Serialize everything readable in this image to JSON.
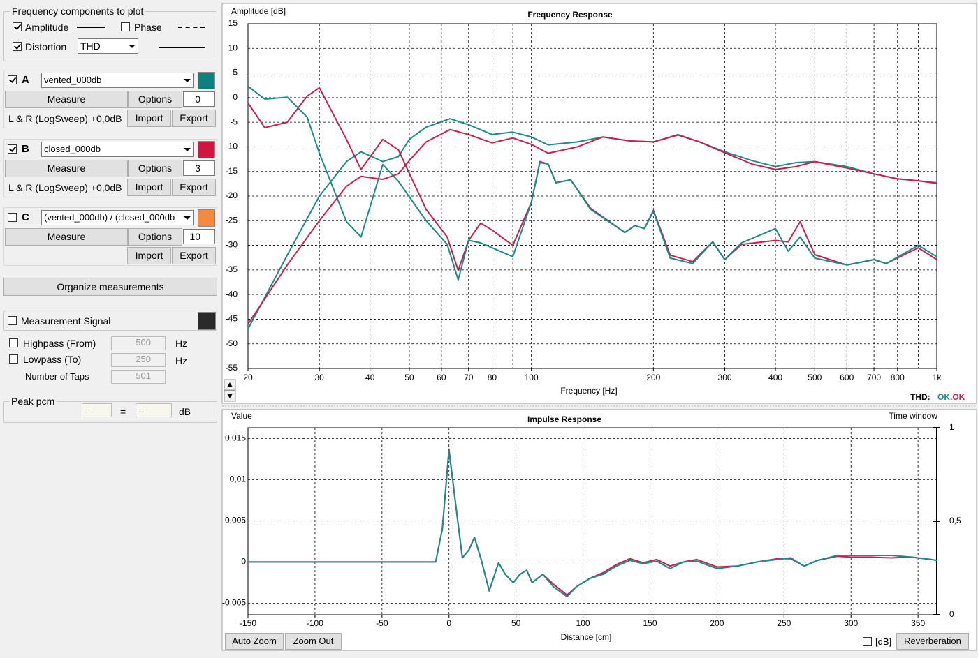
{
  "panel": {
    "components": {
      "title": "Frequency components to plot",
      "amplitude": "Amplitude",
      "phase": "Phase",
      "distortion": "Distortion",
      "distortion_type": "THD"
    },
    "measurements": [
      {
        "letter": "A",
        "checked": true,
        "name": "vented_000db",
        "color": "#0e8080",
        "measure": "Measure",
        "options": "Options",
        "smoothing": "0",
        "source": "L & R (LogSweep) +0,0dB",
        "import": "Import",
        "export": "Export"
      },
      {
        "letter": "B",
        "checked": true,
        "name": "closed_000db",
        "color": "#d0163f",
        "measure": "Measure",
        "options": "Options",
        "smoothing": "3",
        "source": "L & R (LogSweep) +0,0dB",
        "import": "Import",
        "export": "Export"
      },
      {
        "letter": "C",
        "checked": false,
        "name": "(vented_000db) / (closed_000db",
        "color": "#f7883f",
        "measure": "Measure",
        "options": "Options",
        "smoothing": "10",
        "import": "Import",
        "export": "Export"
      }
    ],
    "organize": "Organize measurements",
    "signal": {
      "title": "Measurement Signal",
      "highpass": "Highpass (From)",
      "highpass_value": "500",
      "lowpass": "Lowpass (To)",
      "lowpass_value": "250",
      "unit": "Hz",
      "taps": "Number of Taps",
      "taps_value": "501"
    },
    "peak": {
      "title": "Peak pcm",
      "left": "---",
      "equals": "=",
      "right": "---",
      "unit": "dB"
    }
  },
  "chart_data": [
    {
      "type": "line",
      "title": "Frequency Response",
      "y_label": "Amplitude [dB]",
      "x_label": "Frequency [Hz]",
      "log_x": true,
      "grid": true,
      "xlim": [
        20,
        1000
      ],
      "ylim": [
        -55,
        15
      ],
      "xticks": [
        20,
        30,
        40,
        50,
        60,
        70,
        80,
        100,
        200,
        300,
        400,
        500,
        600,
        700,
        800,
        {
          "value": 1000,
          "label": "1k"
        }
      ],
      "xminorticks": [
        90,
        900
      ],
      "yticks": [
        15,
        10,
        5,
        0,
        -5,
        -10,
        -15,
        -20,
        -25,
        -30,
        -35,
        -40,
        -45,
        -50,
        -55
      ],
      "series": [
        {
          "color": "#1a8a8a",
          "x": [
            20,
            25,
            30,
            35,
            38,
            43,
            47,
            50,
            55,
            63,
            70,
            80,
            90,
            100,
            110,
            130,
            150,
            175,
            200,
            230,
            260,
            300,
            350,
            400,
            450,
            500,
            600,
            700,
            800,
            900,
            1000
          ],
          "values": [
            -47,
            -32,
            -20,
            -13,
            -11,
            -13,
            -12,
            -8.5,
            -6,
            -4.3,
            -5.5,
            -7.5,
            -7,
            -8,
            -9.6,
            -9,
            -8,
            -8.8,
            -9,
            -7.5,
            -9,
            -11,
            -12.8,
            -14,
            -13.2,
            -13,
            -14,
            -15.5,
            -16.5,
            -16.9,
            -17.3
          ]
        },
        {
          "color": "#cc1f4a",
          "x": [
            20,
            25,
            30,
            35,
            38,
            43,
            47,
            50,
            55,
            63,
            70,
            80,
            90,
            100,
            110,
            130,
            150,
            175,
            200,
            230,
            260,
            300,
            350,
            400,
            450,
            500,
            600,
            700,
            800,
            900,
            1000
          ],
          "values": [
            -46,
            -34,
            -25,
            -18,
            -16,
            -16.6,
            -15.5,
            -12.8,
            -9,
            -6.5,
            -7.5,
            -9.2,
            -8.2,
            -9.5,
            -11.3,
            -10,
            -8,
            -8.8,
            -9,
            -7.6,
            -9,
            -11.2,
            -13.5,
            -14.6,
            -14,
            -13,
            -14.3,
            -15.5,
            -16.5,
            -16.9,
            -17.4
          ]
        },
        {
          "color": "#cc1f4a",
          "x": [
            20,
            22,
            25,
            28,
            30,
            35,
            38,
            43,
            47,
            55,
            62,
            66,
            70,
            75,
            80,
            90,
            100,
            105,
            110,
            115,
            125,
            140,
            170,
            180,
            190,
            200,
            220,
            250,
            280,
            300,
            330,
            400,
            430,
            460,
            500,
            600,
            700,
            750,
            900,
            1000
          ],
          "values": [
            -1.1,
            -6.1,
            -5,
            0.3,
            2,
            -8.5,
            -14.6,
            -8.5,
            -10.6,
            -22.7,
            -28.3,
            -35.1,
            -29,
            -25.5,
            -26.9,
            -30,
            -21.3,
            -13,
            -13.5,
            -17.3,
            -16.7,
            -22.5,
            -27.4,
            -26,
            -26.6,
            -22.9,
            -32,
            -33.3,
            -29.3,
            -32.9,
            -29.8,
            -29,
            -29.3,
            -25.2,
            -31.9,
            -34,
            -32.9,
            -33.7,
            -30.5,
            -32.9
          ]
        },
        {
          "color": "#1a8a8a",
          "x": [
            20,
            22,
            25,
            28,
            30,
            35,
            38,
            43,
            47,
            55,
            62,
            66,
            70,
            75,
            80,
            90,
            100,
            105,
            110,
            115,
            125,
            140,
            170,
            180,
            190,
            200,
            220,
            250,
            280,
            300,
            330,
            400,
            430,
            460,
            500,
            600,
            700,
            750,
            900,
            1000
          ],
          "values": [
            2.3,
            -0.3,
            0.1,
            -4,
            -11.3,
            -25.2,
            -28.3,
            -13.6,
            -17,
            -25,
            -29.8,
            -37,
            -29,
            -29.5,
            -30.5,
            -32.3,
            -21.3,
            -13.2,
            -13.5,
            -17.3,
            -16.7,
            -22.7,
            -27.4,
            -26,
            -26.6,
            -23.1,
            -32.6,
            -33.7,
            -29.3,
            -32.9,
            -29.5,
            -26.6,
            -31.2,
            -28.3,
            -32.6,
            -34,
            -32.9,
            -33.7,
            -30,
            -32.3
          ]
        }
      ]
    },
    {
      "type": "line",
      "title": "Impulse Response",
      "y_label": "Value",
      "y2_label": "Time window",
      "x_label": "Distance [cm]",
      "grid": true,
      "xlim": [
        -150,
        364
      ],
      "ylim": [
        -0.0064,
        0.0163
      ],
      "xticks": [
        -150,
        -100,
        -50,
        0,
        50,
        100,
        150,
        200,
        250,
        300,
        350
      ],
      "yticks": [
        {
          "value": -0.005,
          "label": "-0,005"
        },
        0,
        {
          "value": 0.005,
          "label": "0,005"
        },
        {
          "value": 0.01,
          "label": "0,01"
        },
        {
          "value": 0.015,
          "label": "0,015"
        }
      ],
      "y2lim": [
        0,
        1
      ],
      "y2ticks": [
        0,
        {
          "value": 0.5,
          "label": "0,5"
        },
        1
      ],
      "series": [
        {
          "color": "#cc1f4a",
          "x": [
            -150,
            -10,
            -5,
            0,
            5,
            10,
            15,
            19,
            24,
            30,
            37,
            42,
            48,
            53,
            58,
            62,
            70,
            78,
            88,
            95,
            105,
            115,
            125,
            135,
            145,
            155,
            165,
            175,
            185,
            200,
            215,
            230,
            245,
            255,
            265,
            275,
            290,
            300,
            315,
            330,
            345,
            360,
            364
          ],
          "values": [
            0,
            0,
            0.004,
            0.0137,
            0.007,
            0.0005,
            0.0015,
            0.003,
            0.0003,
            -0.0035,
            -0.0001,
            -0.0015,
            -0.0025,
            -0.0015,
            -0.001,
            -0.0025,
            -0.0015,
            -0.0027,
            -0.004,
            -0.003,
            -0.002,
            -0.0013,
            -0.0003,
            0.0004,
            -0.0001,
            0.0003,
            -0.0005,
            0,
            0.0003,
            -0.0006,
            -0.0005,
            0,
            0.0004,
            0.0004,
            -0.0005,
            0.0002,
            0.0007,
            0.0006,
            0.0006,
            0.0005,
            0.0006,
            0.0003,
            0.0002
          ]
        },
        {
          "color": "#1a8a8a",
          "x": [
            -150,
            -10,
            -5,
            0,
            5,
            10,
            15,
            19,
            24,
            30,
            37,
            42,
            48,
            53,
            58,
            62,
            70,
            78,
            88,
            95,
            105,
            115,
            125,
            135,
            145,
            155,
            165,
            175,
            185,
            200,
            215,
            230,
            245,
            255,
            265,
            275,
            290,
            300,
            315,
            330,
            345,
            360,
            364
          ],
          "values": [
            0,
            0,
            0.004,
            0.0135,
            0.007,
            0.0005,
            0.0015,
            0.003,
            0.0003,
            -0.0035,
            -0.0001,
            -0.0015,
            -0.0025,
            -0.0015,
            -0.001,
            -0.0025,
            -0.0015,
            -0.003,
            -0.0042,
            -0.003,
            -0.002,
            -0.0015,
            -0.0005,
            0.0002,
            -0.0002,
            0.0001,
            -0.0008,
            0,
            0.0001,
            -0.0008,
            -0.0005,
            0,
            0.0003,
            0.0005,
            -0.0005,
            0.0002,
            0.0008,
            0.0008,
            0.0008,
            0.0008,
            0.0006,
            0.0003,
            0.0002
          ]
        }
      ]
    }
  ],
  "thd_status": {
    "label": "THD:",
    "a": "OK",
    "b": ".OK"
  },
  "controls": {
    "auto_zoom": "Auto Zoom",
    "zoom_out": "Zoom Out",
    "db_toggle": "[dB]",
    "reverberation": "Reverberation"
  }
}
